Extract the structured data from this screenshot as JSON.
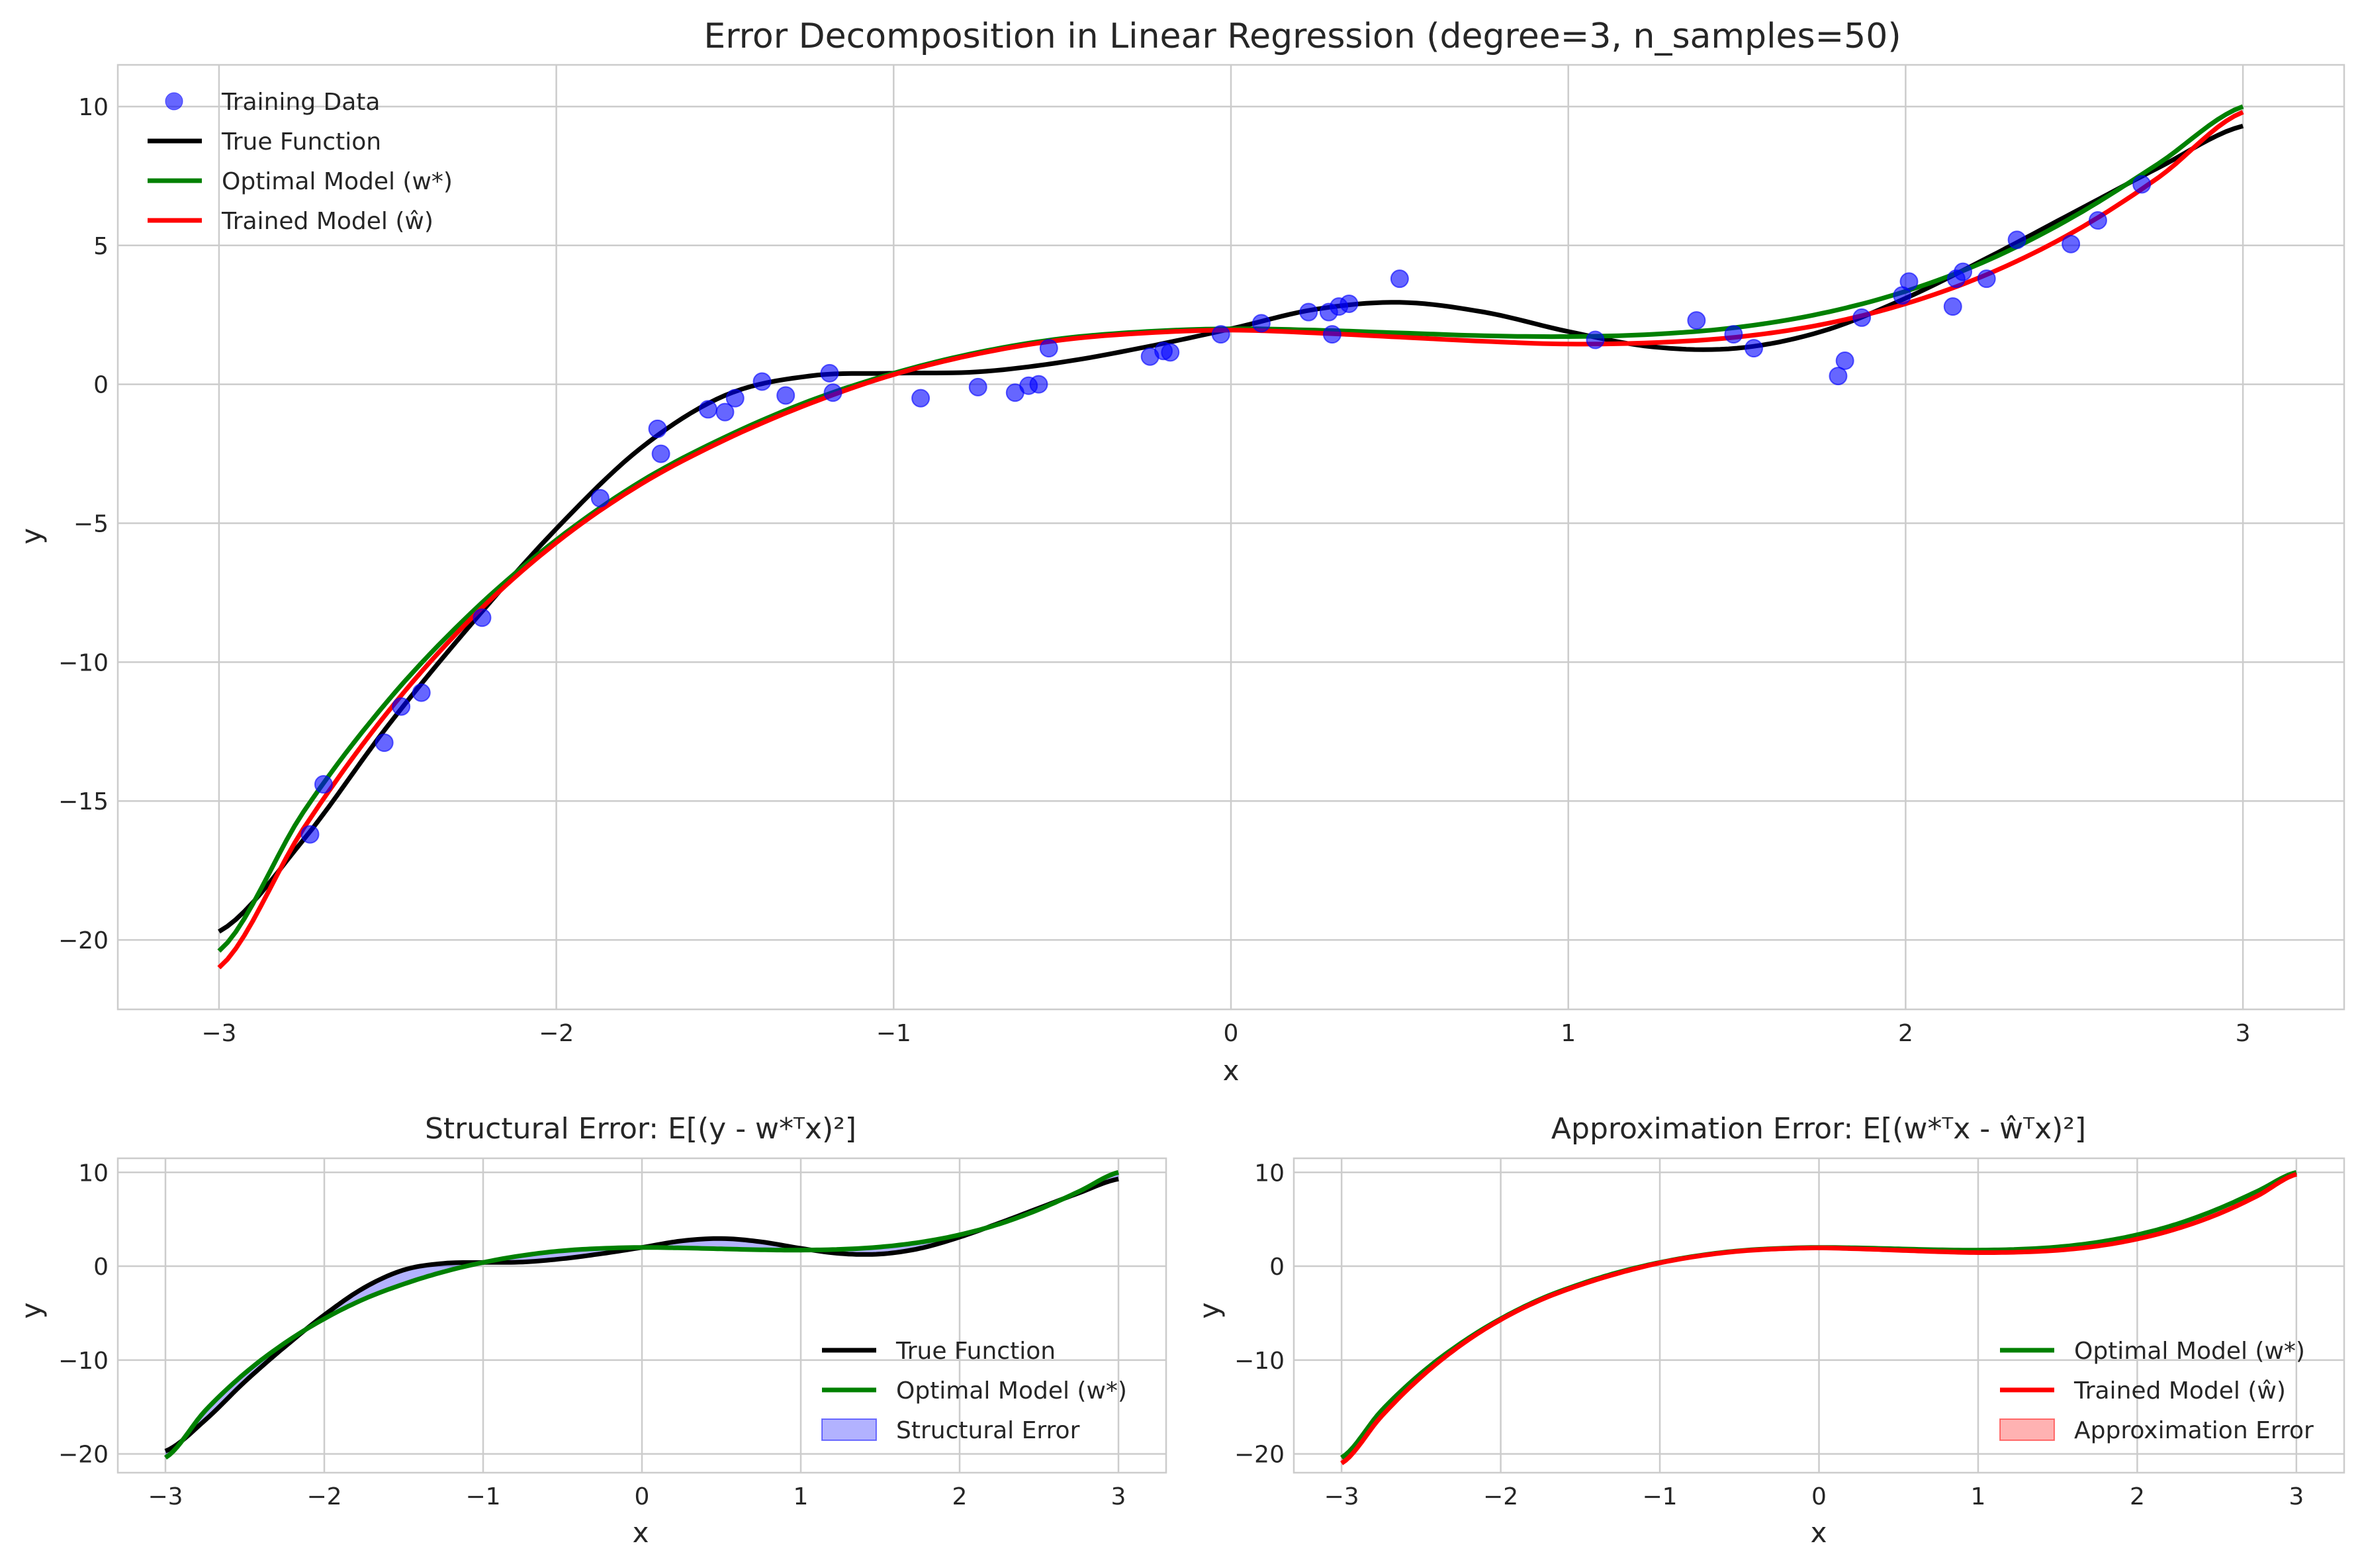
{
  "figure": {
    "title": "Error Decomposition in Linear Regression (degree=3, n_samples=50)"
  },
  "colors": {
    "true": "#000000",
    "optimal": "#008000",
    "trained": "#ff0000",
    "points": "#0000ff",
    "structural_fill": "#0000ff",
    "approx_fill": "#ff0000"
  },
  "chart_data": [
    {
      "id": "main",
      "type": "line",
      "title": "",
      "xlabel": "x",
      "ylabel": "y",
      "xlim": [
        -3.3,
        3.3
      ],
      "ylim": [
        -22.5,
        11.5
      ],
      "xticks": [
        -3,
        -2,
        -1,
        0,
        1,
        2,
        3
      ],
      "yticks": [
        -20,
        -15,
        -10,
        -5,
        0,
        5,
        10
      ],
      "tick_labels_x": [
        "−3",
        "−2",
        "−1",
        "0",
        "1",
        "2",
        "3"
      ],
      "tick_labels_y": [
        "−20",
        "−15",
        "−10",
        "−5",
        "0",
        "5",
        "10"
      ],
      "grid": true,
      "legend_position": "top-left",
      "series": [
        {
          "name": "Training Data",
          "kind": "scatter",
          "key": "points"
        },
        {
          "name": "True Function",
          "kind": "line",
          "key": "true"
        },
        {
          "name": "Optimal Model (w*)",
          "kind": "line",
          "key": "optimal"
        },
        {
          "name": "Trained Model (ŵ)",
          "kind": "line",
          "key": "trained"
        }
      ],
      "scatter_points": [
        [
          -2.73,
          -16.2
        ],
        [
          -2.69,
          -14.4
        ],
        [
          -2.51,
          -12.9
        ],
        [
          -2.46,
          -11.6
        ],
        [
          -2.4,
          -11.1
        ],
        [
          -2.22,
          -8.4
        ],
        [
          -1.87,
          -4.1
        ],
        [
          -1.7,
          -1.6
        ],
        [
          -1.69,
          -2.5
        ],
        [
          -1.55,
          -0.9
        ],
        [
          -1.5,
          -1.0
        ],
        [
          -1.47,
          -0.5
        ],
        [
          -1.39,
          0.1
        ],
        [
          -1.32,
          -0.4
        ],
        [
          -1.19,
          0.4
        ],
        [
          -1.18,
          -0.3
        ],
        [
          -0.92,
          -0.5
        ],
        [
          -0.75,
          -0.1
        ],
        [
          -0.64,
          -0.3
        ],
        [
          -0.6,
          -0.05
        ],
        [
          -0.57,
          0.0
        ],
        [
          -0.54,
          1.3
        ],
        [
          -0.24,
          1.0
        ],
        [
          -0.2,
          1.2
        ],
        [
          -0.18,
          1.15
        ],
        [
          -0.03,
          1.8
        ],
        [
          0.09,
          2.2
        ],
        [
          0.23,
          2.6
        ],
        [
          0.29,
          2.6
        ],
        [
          0.3,
          1.8
        ],
        [
          0.32,
          2.8
        ],
        [
          0.35,
          2.9
        ],
        [
          0.5,
          3.8
        ],
        [
          1.08,
          1.6
        ],
        [
          1.38,
          2.3
        ],
        [
          1.49,
          1.8
        ],
        [
          1.55,
          1.3
        ],
        [
          1.8,
          0.3
        ],
        [
          1.82,
          0.85
        ],
        [
          1.87,
          2.4
        ],
        [
          1.99,
          3.2
        ],
        [
          2.01,
          3.7
        ],
        [
          2.14,
          2.8
        ],
        [
          2.15,
          3.8
        ],
        [
          2.17,
          4.05
        ],
        [
          2.24,
          3.8
        ],
        [
          2.33,
          5.2
        ],
        [
          2.49,
          5.05
        ],
        [
          2.57,
          5.9
        ],
        [
          2.7,
          7.2
        ]
      ]
    },
    {
      "id": "structural",
      "type": "area",
      "title": "Structural Error: E[(y - w*ᵀx)²]",
      "xlabel": "x",
      "ylabel": "y",
      "xlim": [
        -3.3,
        3.3
      ],
      "ylim": [
        -22,
        11.5
      ],
      "xticks": [
        -3,
        -2,
        -1,
        0,
        1,
        2,
        3
      ],
      "yticks": [
        -20,
        -10,
        0,
        10
      ],
      "tick_labels_x": [
        "−3",
        "−2",
        "−1",
        "0",
        "1",
        "2",
        "3"
      ],
      "tick_labels_y": [
        "−20",
        "−10",
        "0",
        "10"
      ],
      "grid": true,
      "legend_position": "lower-right",
      "series": [
        {
          "name": "True Function",
          "kind": "line",
          "key": "true"
        },
        {
          "name": "Optimal Model (w*)",
          "kind": "line",
          "key": "optimal"
        },
        {
          "name": "Structural Error",
          "kind": "fill",
          "key": "structural_fill"
        }
      ]
    },
    {
      "id": "approximation",
      "type": "area",
      "title": "Approximation Error: E[(w*ᵀx - ŵᵀx)²]",
      "xlabel": "x",
      "ylabel": "y",
      "xlim": [
        -3.3,
        3.3
      ],
      "ylim": [
        -22,
        11.5
      ],
      "xticks": [
        -3,
        -2,
        -1,
        0,
        1,
        2,
        3
      ],
      "yticks": [
        -20,
        -10,
        0,
        10
      ],
      "tick_labels_x": [
        "−3",
        "−2",
        "−1",
        "0",
        "1",
        "2",
        "3"
      ],
      "tick_labels_y": [
        "−20",
        "−10",
        "0",
        "10"
      ],
      "grid": true,
      "legend_position": "lower-right",
      "series": [
        {
          "name": "Optimal Model (w*)",
          "kind": "line",
          "key": "optimal"
        },
        {
          "name": "Trained Model (ŵ)",
          "kind": "line",
          "key": "trained"
        },
        {
          "name": "Approximation Error",
          "kind": "fill",
          "key": "approx_fill"
        }
      ]
    }
  ],
  "curves": {
    "true": {
      "x": [
        -3,
        -2.75,
        -2.5,
        -2.25,
        -2,
        -1.75,
        -1.5,
        -1.25,
        -1,
        -0.75,
        -0.5,
        -0.25,
        0,
        0.25,
        0.5,
        0.75,
        1,
        1.25,
        1.5,
        1.75,
        2,
        2.25,
        2.5,
        2.75,
        3
      ],
      "y": [
        -19.7,
        -16.4,
        -12.3,
        -8.6,
        -5.2,
        -2.3,
        -0.4,
        0.3,
        0.4,
        0.45,
        0.8,
        1.35,
        2.0,
        2.7,
        2.95,
        2.6,
        1.9,
        1.35,
        1.3,
        1.9,
        3.1,
        4.6,
        6.2,
        7.8,
        9.3
      ]
    },
    "optimal": {
      "x": [
        -3,
        -2.75,
        -2.5,
        -2.25,
        -2,
        -1.75,
        -1.5,
        -1.25,
        -1,
        -0.75,
        -0.5,
        -0.25,
        0,
        0.25,
        0.5,
        0.75,
        1,
        1.25,
        1.5,
        1.75,
        2,
        2.25,
        2.5,
        2.75,
        3
      ],
      "y": [
        -20.4,
        -15.4,
        -11.4,
        -8.2,
        -5.6,
        -3.5,
        -1.9,
        -0.6,
        0.4,
        1.15,
        1.65,
        1.9,
        2.0,
        1.95,
        1.85,
        1.75,
        1.72,
        1.8,
        2.05,
        2.55,
        3.35,
        4.5,
        6.05,
        7.95,
        10.0
      ]
    },
    "trained": {
      "x": [
        -3,
        -2.75,
        -2.5,
        -2.25,
        -2,
        -1.75,
        -1.5,
        -1.25,
        -1,
        -0.75,
        -0.5,
        -0.25,
        0,
        0.25,
        0.5,
        0.75,
        1,
        1.25,
        1.5,
        1.75,
        2,
        2.25,
        2.5,
        2.75,
        3
      ],
      "y": [
        -21.0,
        -16.0,
        -11.8,
        -8.4,
        -5.7,
        -3.6,
        -2.0,
        -0.7,
        0.35,
        1.1,
        1.6,
        1.85,
        1.95,
        1.85,
        1.7,
        1.55,
        1.45,
        1.5,
        1.7,
        2.15,
        2.9,
        4.0,
        5.5,
        7.45,
        9.8
      ]
    }
  }
}
